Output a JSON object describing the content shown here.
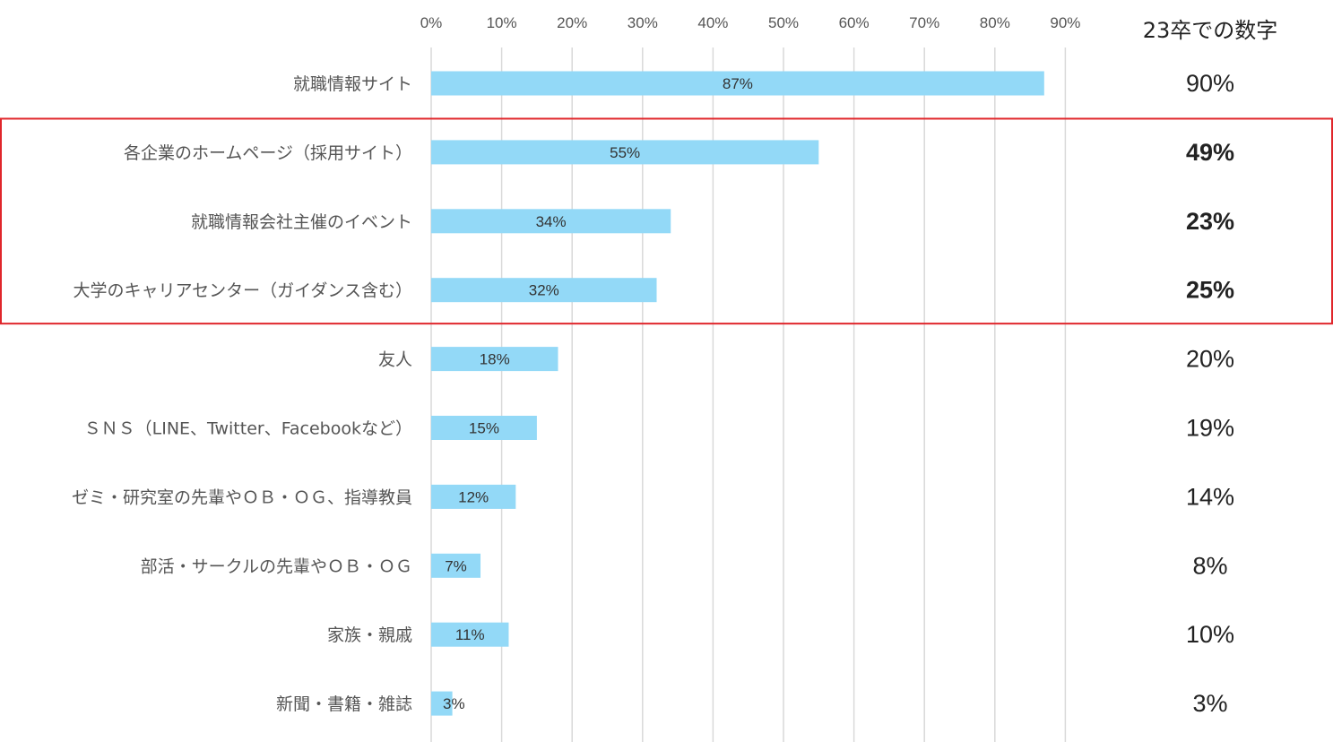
{
  "chart_data": {
    "type": "bar",
    "orientation": "horizontal",
    "title": "",
    "xlabel": "",
    "ylabel": "",
    "xlim": [
      0,
      90
    ],
    "x_ticks": [
      "0%",
      "10%",
      "20%",
      "30%",
      "40%",
      "50%",
      "60%",
      "70%",
      "80%",
      "90%"
    ],
    "grid": true,
    "categories": [
      "就職情報サイト",
      "各企業のホームページ（採用サイト）",
      "就職情報会社主催のイベント",
      "大学のキャリアセンター（ガイダンス含む）",
      "友人",
      "ＳＮＳ（LINE、Twitter、Facebookなど）",
      "ゼミ・研究室の先輩やＯＢ・ＯＧ、指導教員",
      "部活・サークルの先輩やＯＢ・ＯＧ",
      "家族・親戚",
      "新聞・書籍・雑誌"
    ],
    "values": [
      87,
      55,
      34,
      32,
      18,
      15,
      12,
      7,
      11,
      3
    ],
    "value_labels": [
      "87%",
      "55%",
      "34%",
      "32%",
      "18%",
      "15%",
      "12%",
      "7%",
      "11%",
      "3%"
    ],
    "comparison": {
      "header": "23卒での数字",
      "values": [
        90,
        49,
        23,
        25,
        20,
        19,
        14,
        8,
        10,
        3
      ],
      "labels": [
        "90%",
        "49%",
        "23%",
        "25%",
        "20%",
        "19%",
        "14%",
        "8%",
        "10%",
        "3%"
      ],
      "bold": [
        false,
        true,
        true,
        true,
        false,
        false,
        false,
        false,
        false,
        false
      ]
    },
    "highlight": {
      "categories": [
        1,
        2,
        3
      ],
      "color": "#e0262b"
    },
    "colors": {
      "bar": "#93d9f7",
      "grid": "#d9d9d9",
      "highlight_box": "#e0262b"
    }
  }
}
